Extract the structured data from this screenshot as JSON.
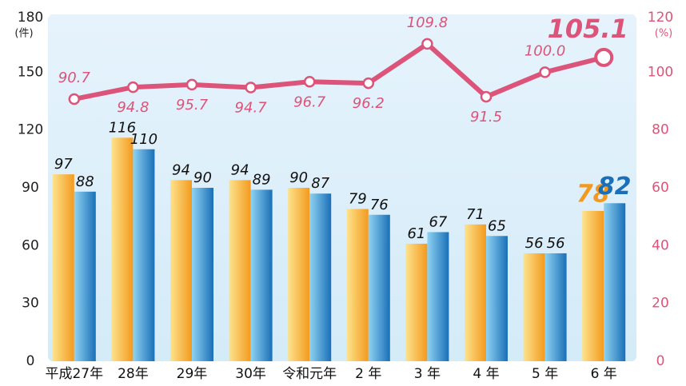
{
  "chart_data": {
    "type": "bar",
    "y_unit": "(件)",
    "y2_unit": "(%)",
    "categories": [
      "平成27年",
      "28年",
      "29年",
      "30年",
      "令和元年",
      "2 年",
      "3 年",
      "4 年",
      "5 年",
      "6 年"
    ],
    "series": [
      {
        "color": "#f39a1e",
        "values": [
          97,
          116,
          94,
          94,
          90,
          79,
          61,
          71,
          56,
          78
        ]
      },
      {
        "color": "#1a6fb8",
        "values": [
          88,
          110,
          90,
          89,
          87,
          76,
          67,
          65,
          56,
          82
        ]
      },
      {
        "type": "line",
        "axis": "y2",
        "color": "#dc5479",
        "values": [
          90.7,
          94.8,
          95.7,
          94.7,
          96.7,
          96.2,
          109.8,
          91.5,
          100.0,
          105.1
        ],
        "value_labels": [
          "90.7",
          "94.8",
          "95.7",
          "94.7",
          "96.7",
          "96.2",
          "109.8",
          "91.5",
          "100.0",
          "105.1"
        ]
      }
    ],
    "ylim": [
      0,
      180
    ],
    "yticks": [
      0,
      30,
      60,
      90,
      120,
      150,
      180
    ],
    "y2lim": [
      0,
      120
    ],
    "y2ticks": [
      0,
      20,
      40,
      60,
      80,
      100,
      120
    ]
  }
}
